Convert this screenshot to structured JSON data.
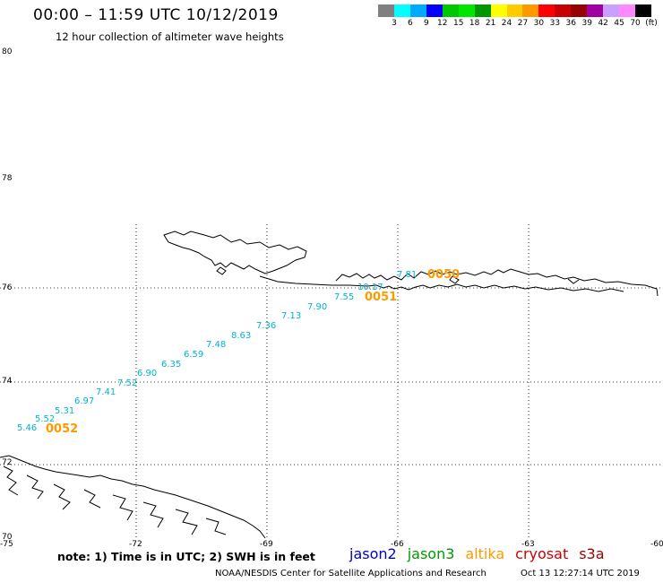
{
  "header": {
    "title": "00:00 – 11:59 UTC 10/12/2019",
    "subtitle": "12 hour collection of altimeter wave heights"
  },
  "colorbar": {
    "colors": [
      "#808080",
      "#00ffff",
      "#00aaff",
      "#0000ff",
      "#00c800",
      "#00e600",
      "#009600",
      "#ffff00",
      "#ffcc00",
      "#ff9900",
      "#ff0000",
      "#c80000",
      "#960000",
      "#a000a0",
      "#c8a0ff",
      "#ff88ff",
      "#000000"
    ],
    "labels": [
      "3",
      "6",
      "9",
      "12",
      "15",
      "18",
      "21",
      "24",
      "27",
      "30",
      "33",
      "36",
      "39",
      "42",
      "45",
      "70",
      "(ft)"
    ]
  },
  "axes": {
    "lat_labels": [
      "80",
      "78",
      "76",
      "74",
      "72",
      "70"
    ],
    "lon_labels": [
      "-75",
      "-72",
      "-69",
      "-66",
      "-63",
      "-60"
    ]
  },
  "track": {
    "swh_values": [
      "5.46",
      "5.52",
      "5.31",
      "6.97",
      "7.41",
      "7.52",
      "6.90",
      "6.35",
      "6.59",
      "7.48",
      "8.63",
      "7.36",
      "7.13",
      "7.90",
      "7.55",
      "10.17",
      "7.81"
    ],
    "time_labels": [
      "0052",
      "0051",
      "0050"
    ]
  },
  "footer": {
    "note": "note:  1) Time is in UTC;  2) SWH is in feet",
    "legend": [
      {
        "name": "jason2",
        "color": "#0000cc"
      },
      {
        "name": "jason3",
        "color": "#009900"
      },
      {
        "name": "altika",
        "color": "#ff9900"
      },
      {
        "name": "cryosat",
        "color": "#cc0000"
      },
      {
        "name": "s3a",
        "color": "#990000"
      }
    ],
    "credit": "NOAA/NESDIS Center for Satellite Applications and Research",
    "date": "Oct 13 12:27:14 UTC 2019"
  }
}
